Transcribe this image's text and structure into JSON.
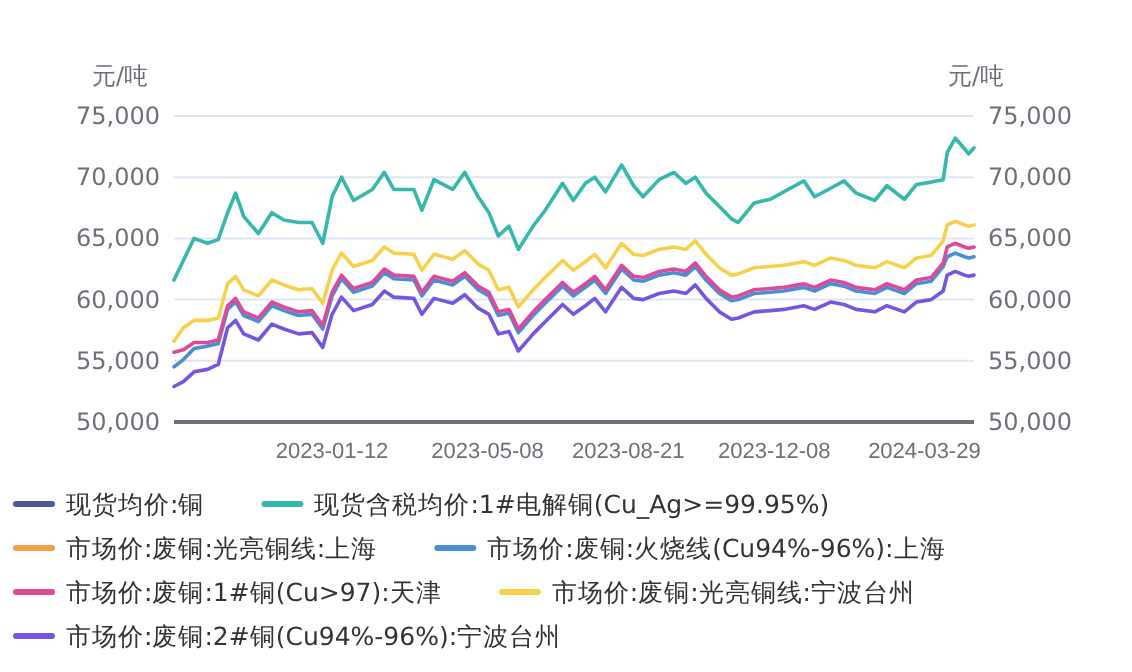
{
  "chart_data": {
    "type": "line",
    "ylabel": "元/吨",
    "y2label": "元/吨",
    "x": [
      "2022-09-16",
      "2022-09-23",
      "2022-10-01",
      "2022-10-11",
      "2022-10-19",
      "2022-10-26",
      "2022-11-01",
      "2022-11-07",
      "2022-11-18",
      "2022-11-28",
      "2022-12-07",
      "2022-12-18",
      "2022-12-28",
      "2023-01-05",
      "2023-01-12",
      "2023-01-19",
      "2023-01-28",
      "2023-02-11",
      "2023-02-20",
      "2023-02-27",
      "2023-03-14",
      "2023-03-20",
      "2023-03-29",
      "2023-04-12",
      "2023-04-21",
      "2023-05-01",
      "2023-05-09",
      "2023-05-16",
      "2023-05-24",
      "2023-05-31",
      "2023-06-11",
      "2023-06-20",
      "2023-07-03",
      "2023-07-11",
      "2023-07-20",
      "2023-07-27",
      "2023-08-04",
      "2023-08-16",
      "2023-08-25",
      "2023-09-01",
      "2023-09-13",
      "2023-09-24",
      "2023-10-03",
      "2023-10-10",
      "2023-10-18",
      "2023-10-28",
      "2023-11-06",
      "2023-11-11",
      "2023-11-23",
      "2023-12-05",
      "2023-12-15",
      "2023-12-30",
      "2024-01-07",
      "2024-01-19",
      "2024-01-29",
      "2024-02-07",
      "2024-02-21",
      "2024-03-01",
      "2024-03-14",
      "2024-03-23",
      "2024-04-03",
      "2024-04-12",
      "2024-04-15",
      "2024-04-21",
      "2024-04-28",
      "2024-05-01",
      "2024-05-05"
    ],
    "xlim": [
      "2022-09-16",
      "2024-05-05"
    ],
    "xticks": [
      "2023-01-12",
      "2023-05-08",
      "2023-08-21",
      "2023-12-08",
      "2024-03-29"
    ],
    "ylim": [
      50000,
      75000
    ],
    "yticks": [
      {
        "value": 50000,
        "label": "50,000"
      },
      {
        "value": 55000,
        "label": "55,000"
      },
      {
        "value": 60000,
        "label": "60,000"
      },
      {
        "value": 65000,
        "label": "65,000"
      },
      {
        "value": 70000,
        "label": "70,000"
      },
      {
        "value": 75000,
        "label": "75,000"
      }
    ],
    "y2lim": [
      50000,
      75000
    ],
    "y2ticks": [
      {
        "value": 50000,
        "label": "50,000"
      },
      {
        "value": 55000,
        "label": "55,000"
      },
      {
        "value": 60000,
        "label": "60,000"
      },
      {
        "value": 65000,
        "label": "65,000"
      },
      {
        "value": 70000,
        "label": "70,000"
      },
      {
        "value": 75000,
        "label": "75,000"
      }
    ],
    "grid": "y",
    "legend": "bottom",
    "series": [
      {
        "name": "现货均价:铜",
        "color": "#4e5a96",
        "values": [
          null,
          null,
          null,
          null,
          null,
          null,
          null,
          null,
          null,
          null,
          null,
          null,
          null,
          null,
          null,
          null,
          null,
          null,
          null,
          null,
          null,
          null,
          null,
          null,
          null,
          null,
          null,
          null,
          null,
          null,
          null,
          null,
          null,
          null,
          null,
          null,
          null,
          null,
          null,
          null,
          null,
          null,
          null,
          null,
          null,
          null,
          null,
          null,
          null,
          null,
          null,
          null,
          null,
          null,
          null,
          null,
          null,
          null,
          null,
          null,
          null,
          null,
          null,
          null,
          null,
          null,
          null
        ]
      },
      {
        "name": "现货含税均价:1#电解铜(Cu_Ag>=99.95%)",
        "color": "#36b8ac",
        "values": [
          61600,
          63200,
          65000,
          64600,
          64900,
          67100,
          68700,
          66800,
          65400,
          67100,
          66500,
          66300,
          66300,
          64600,
          68400,
          70000,
          68100,
          69000,
          70400,
          69000,
          69000,
          67300,
          69800,
          69000,
          70400,
          68400,
          67100,
          65200,
          66000,
          64100,
          66000,
          67300,
          69500,
          68100,
          69500,
          70000,
          68800,
          71000,
          69300,
          68400,
          69800,
          70400,
          69500,
          70000,
          68700,
          67600,
          66600,
          66300,
          67900,
          68200,
          68800,
          69700,
          68400,
          69100,
          69700,
          68700,
          68100,
          69300,
          68200,
          69400,
          69600,
          69800,
          72000,
          73200,
          72300,
          71900,
          72400
        ]
      },
      {
        "name": "市场价:废铜:光亮铜线:上海",
        "color": "#f5a04a",
        "values": [
          null,
          null,
          null,
          null,
          null,
          null,
          null,
          null,
          null,
          null,
          null,
          null,
          null,
          null,
          null,
          null,
          null,
          null,
          null,
          null,
          null,
          null,
          null,
          null,
          null,
          null,
          null,
          null,
          null,
          null,
          null,
          null,
          null,
          null,
          null,
          null,
          null,
          null,
          null,
          null,
          null,
          null,
          null,
          null,
          null,
          null,
          null,
          null,
          null,
          null,
          null,
          null,
          null,
          null,
          null,
          null,
          null,
          null,
          null,
          null,
          null,
          null,
          null,
          null,
          null,
          null,
          null
        ]
      },
      {
        "name": "市场价:废铜:火烧线(Cu94%-96%):上海",
        "color": "#4a8fd6",
        "values": [
          54500,
          55100,
          56000,
          56200,
          56400,
          59200,
          59800,
          58700,
          58200,
          59500,
          59100,
          58700,
          58800,
          57600,
          60300,
          61700,
          60600,
          61100,
          62200,
          61700,
          61600,
          60300,
          61600,
          61200,
          61900,
          60800,
          60300,
          58700,
          58900,
          57300,
          58700,
          59700,
          61100,
          60300,
          61000,
          61600,
          60500,
          62500,
          61600,
          61500,
          62000,
          62200,
          62000,
          62700,
          61600,
          60500,
          59900,
          60000,
          60500,
          60600,
          60700,
          61000,
          60700,
          61300,
          61100,
          60700,
          60500,
          61000,
          60500,
          61300,
          61500,
          62700,
          63500,
          63800,
          63500,
          63400,
          63500
        ]
      },
      {
        "name": "市场价:废铜:1#铜(Cu>97):天津",
        "color": "#dd4a97",
        "values": [
          55700,
          55900,
          56500,
          56500,
          56700,
          59500,
          60100,
          59000,
          58500,
          59800,
          59400,
          59000,
          59100,
          57900,
          60600,
          62000,
          60900,
          61400,
          62500,
          62000,
          61900,
          60600,
          61900,
          61500,
          62200,
          61100,
          60600,
          59000,
          59200,
          57600,
          59000,
          60000,
          61400,
          60600,
          61300,
          61900,
          60800,
          62800,
          61900,
          61800,
          62300,
          62500,
          62300,
          63000,
          61900,
          60800,
          60200,
          60300,
          60800,
          60900,
          61000,
          61300,
          61000,
          61600,
          61400,
          61000,
          60800,
          61300,
          60800,
          61600,
          61800,
          63000,
          64300,
          64600,
          64300,
          64200,
          64300
        ]
      },
      {
        "name": "市场价:废铜:光亮铜线:宁波台州",
        "color": "#f7d04c",
        "values": [
          56600,
          57700,
          58300,
          58300,
          58500,
          61300,
          61900,
          60800,
          60300,
          61600,
          61200,
          60800,
          60900,
          59700,
          62400,
          63800,
          62700,
          63200,
          64300,
          63800,
          63700,
          62400,
          63700,
          63300,
          64000,
          62900,
          62400,
          60800,
          61000,
          59400,
          60800,
          61800,
          63200,
          62400,
          63100,
          63700,
          62600,
          64600,
          63700,
          63600,
          64100,
          64300,
          64100,
          64800,
          63700,
          62600,
          62000,
          62100,
          62600,
          62700,
          62800,
          63100,
          62800,
          63400,
          63200,
          62800,
          62600,
          63100,
          62600,
          63400,
          63600,
          64800,
          66100,
          66400,
          66100,
          66000,
          66100
        ]
      },
      {
        "name": "市场价:废铜:2#铜(Cu94%-96%):宁波台州",
        "color": "#7656e0",
        "values": [
          52900,
          53300,
          54100,
          54300,
          54700,
          57700,
          58300,
          57200,
          56700,
          58000,
          57600,
          57200,
          57300,
          56100,
          58800,
          60200,
          59100,
          59600,
          60700,
          60200,
          60100,
          58800,
          60100,
          59700,
          60400,
          59300,
          58800,
          57200,
          57400,
          55800,
          57200,
          58200,
          59600,
          58800,
          59500,
          60100,
          59000,
          61000,
          60100,
          60000,
          60500,
          60700,
          60500,
          61200,
          60100,
          59000,
          58400,
          58500,
          59000,
          59100,
          59200,
          59500,
          59200,
          59800,
          59600,
          59200,
          59000,
          59500,
          59000,
          59800,
          60000,
          60700,
          62000,
          62300,
          62000,
          61900,
          62000
        ]
      }
    ]
  }
}
